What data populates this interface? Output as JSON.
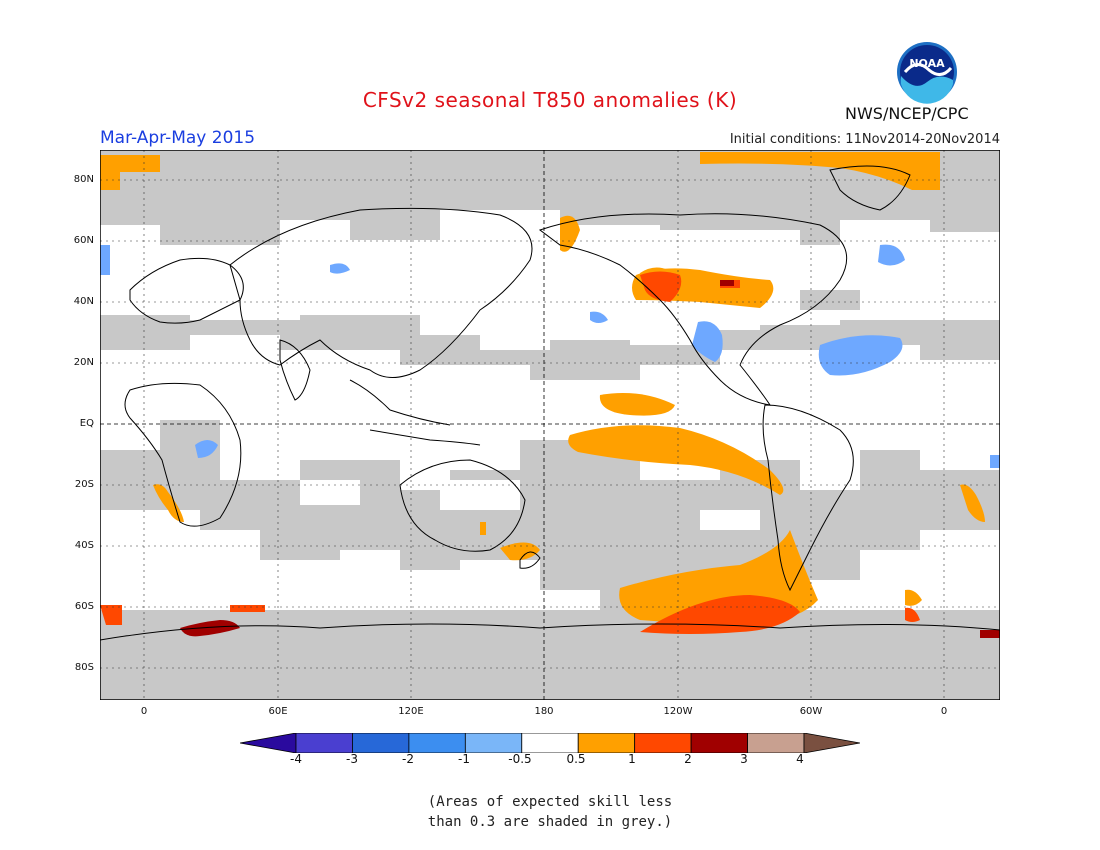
{
  "header": {
    "title": "CFSv2 seasonal T850 anomalies (K)",
    "season": "Mar-Apr-May 2015",
    "initial_conditions": "Initial conditions: 11Nov2014-20Nov2014",
    "organization": "NWS/NCEP/CPC",
    "logo_text": "NOAA"
  },
  "map": {
    "lat_labels": [
      "80N",
      "60N",
      "40N",
      "20N",
      "EQ",
      "20S",
      "40S",
      "60S",
      "80S"
    ],
    "lon_labels": [
      "0",
      "60E",
      "120E",
      "180",
      "120W",
      "60W",
      "0"
    ],
    "colors": {
      "grey": "#c8c8c8",
      "orange": "#ffa000",
      "red_orange": "#ff4800",
      "dark_red": "#a00000",
      "light_blue": "#6ea8ff",
      "coast": "#000000"
    }
  },
  "colorbar": {
    "labels": [
      "-4",
      "-3",
      "-2",
      "-1",
      "-0.5",
      "0.5",
      "1",
      "2",
      "3",
      "4"
    ],
    "colors": [
      "#2a0a9e",
      "#4a3fd0",
      "#2768d8",
      "#3c8ef0",
      "#7ab6f8",
      "#ffffff",
      "#ffa000",
      "#ff4800",
      "#a00000",
      "#c8a090",
      "#7a5040"
    ]
  },
  "note": {
    "line1": "(Areas of expected skill less",
    "line2": "than 0.3 are shaded in grey.)"
  }
}
